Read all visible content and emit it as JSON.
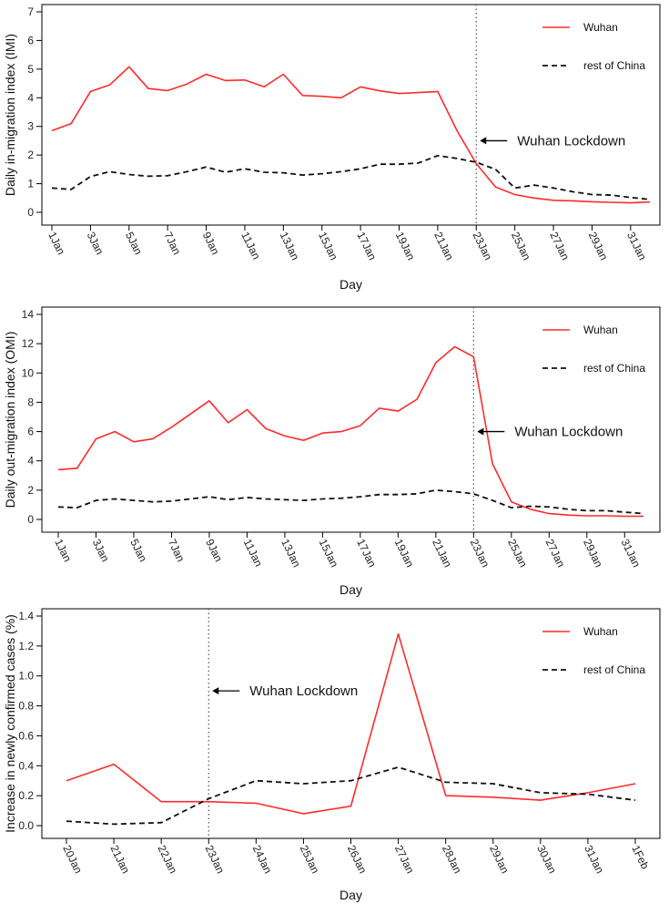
{
  "colors": {
    "wuhan": "#ff2a2a",
    "rest": "#111111"
  },
  "chart_data": [
    {
      "type": "line",
      "xlabel": "Day",
      "ylabel": "Daily in-migration index (IMI)",
      "ylim": [
        0,
        7
      ],
      "yticks": [
        0,
        1,
        2,
        3,
        4,
        5,
        6,
        7
      ],
      "xlim": [
        1,
        32
      ],
      "xticks": [
        1,
        3,
        5,
        7,
        9,
        11,
        13,
        15,
        17,
        19,
        21,
        23,
        25,
        27,
        29,
        31
      ],
      "xtick_labels": [
        "1Jan",
        "3Jan",
        "5Jan",
        "7Jan",
        "9Jan",
        "11Jan",
        "13Jan",
        "15Jan",
        "17Jan",
        "19Jan",
        "21Jan",
        "23Jan",
        "25Jan",
        "27Jan",
        "29Jan",
        "31Jan"
      ],
      "x": [
        1,
        2,
        3,
        4,
        5,
        6,
        7,
        8,
        9,
        10,
        11,
        12,
        13,
        14,
        15,
        16,
        17,
        18,
        19,
        20,
        21,
        22,
        23,
        24,
        25,
        26,
        27,
        28,
        29,
        30,
        31,
        32
      ],
      "series": [
        {
          "name": "Wuhan",
          "style": "solid",
          "values": [
            2.85,
            3.1,
            4.22,
            4.45,
            5.08,
            4.32,
            4.25,
            4.48,
            4.82,
            4.6,
            4.62,
            4.38,
            4.82,
            4.08,
            4.05,
            4.0,
            4.38,
            4.24,
            4.15,
            4.18,
            4.22,
            2.85,
            1.7,
            0.88,
            0.62,
            0.5,
            0.42,
            0.4,
            0.37,
            0.35,
            0.33,
            0.36
          ]
        },
        {
          "name": "rest of China",
          "style": "dashed",
          "values": [
            0.85,
            0.8,
            1.25,
            1.42,
            1.32,
            1.26,
            1.28,
            1.42,
            1.58,
            1.4,
            1.52,
            1.4,
            1.38,
            1.3,
            1.35,
            1.42,
            1.52,
            1.68,
            1.68,
            1.72,
            1.98,
            1.88,
            1.75,
            1.5,
            0.85,
            0.95,
            0.85,
            0.72,
            0.62,
            0.6,
            0.52,
            0.45
          ]
        }
      ],
      "vline": 23,
      "annotation": {
        "text": "Wuhan Lockdown",
        "x": 23,
        "y": 2.5
      }
    },
    {
      "type": "line",
      "xlabel": "Day",
      "ylabel": "Daily out-migration index (OMI)",
      "ylim": [
        0,
        14
      ],
      "yticks": [
        0,
        2,
        4,
        6,
        8,
        10,
        12,
        14
      ],
      "xlim": [
        1,
        32
      ],
      "xticks": [
        1,
        3,
        5,
        7,
        9,
        11,
        13,
        15,
        17,
        19,
        21,
        23,
        25,
        27,
        29,
        31
      ],
      "xtick_labels": [
        "1Jan",
        "3Jan",
        "5Jan",
        "7Jan",
        "9Jan",
        "11Jan",
        "13Jan",
        "15Jan",
        "17Jan",
        "19Jan",
        "21Jan",
        "23Jan",
        "25Jan",
        "27Jan",
        "29Jan",
        "31Jan"
      ],
      "x": [
        1,
        2,
        3,
        4,
        5,
        6,
        7,
        8,
        9,
        10,
        11,
        12,
        13,
        14,
        15,
        16,
        17,
        18,
        19,
        20,
        21,
        22,
        23,
        24,
        25,
        26,
        27,
        28,
        29,
        30,
        31,
        32
      ],
      "series": [
        {
          "name": "Wuhan",
          "style": "solid",
          "values": [
            3.4,
            3.5,
            5.5,
            6.0,
            5.3,
            5.5,
            6.3,
            7.2,
            8.1,
            6.6,
            7.5,
            6.2,
            5.7,
            5.4,
            5.9,
            6.0,
            6.4,
            7.6,
            7.4,
            8.2,
            10.7,
            11.8,
            11.1,
            3.8,
            1.2,
            0.7,
            0.4,
            0.3,
            0.25,
            0.25,
            0.22,
            0.22
          ]
        },
        {
          "name": "rest of China",
          "style": "dashed",
          "values": [
            0.85,
            0.8,
            1.3,
            1.4,
            1.3,
            1.2,
            1.25,
            1.4,
            1.55,
            1.35,
            1.5,
            1.4,
            1.35,
            1.3,
            1.4,
            1.45,
            1.55,
            1.7,
            1.7,
            1.75,
            2.0,
            1.9,
            1.75,
            1.3,
            0.8,
            0.9,
            0.85,
            0.7,
            0.6,
            0.6,
            0.5,
            0.4
          ]
        }
      ],
      "vline": 23,
      "annotation": {
        "text": "Wuhan Lockdown",
        "x": 23,
        "y": 6
      }
    },
    {
      "type": "line",
      "xlabel": "Day",
      "ylabel": "Increase in newly confirmed cases (%)",
      "ylim": [
        0,
        1.4
      ],
      "yticks": [
        0.0,
        0.2,
        0.4,
        0.6,
        0.8,
        1.0,
        1.2,
        1.4
      ],
      "ytick_labels": [
        "0.0",
        "0.2",
        "0.4",
        "0.6",
        "0.8",
        "1.0",
        "1.2",
        "1.4"
      ],
      "xlim": [
        0,
        12
      ],
      "xticks": [
        0,
        1,
        2,
        3,
        4,
        5,
        6,
        7,
        8,
        9,
        10,
        11,
        12
      ],
      "xtick_labels": [
        "20Jan",
        "21Jan",
        "22Jan",
        "23Jan",
        "24Jan",
        "25Jan",
        "26Jan",
        "27Jan",
        "28Jan",
        "29Jan",
        "30Jan",
        "31Jan",
        "1Feb"
      ],
      "x": [
        0,
        1,
        2,
        3,
        4,
        5,
        6,
        7,
        8,
        9,
        10,
        11,
        12
      ],
      "series": [
        {
          "name": "Wuhan",
          "style": "solid",
          "values": [
            0.3,
            0.41,
            0.16,
            0.16,
            0.15,
            0.08,
            0.13,
            1.28,
            0.2,
            0.19,
            0.17,
            0.22,
            0.28
          ]
        },
        {
          "name": "rest of China",
          "style": "dashed",
          "values": [
            0.03,
            0.01,
            0.02,
            0.18,
            0.3,
            0.28,
            0.3,
            0.39,
            0.29,
            0.28,
            0.22,
            0.21,
            0.17
          ]
        }
      ],
      "vline": 3,
      "annotation": {
        "text": "Wuhan Lockdown",
        "x": 3,
        "y": 0.9
      }
    }
  ]
}
